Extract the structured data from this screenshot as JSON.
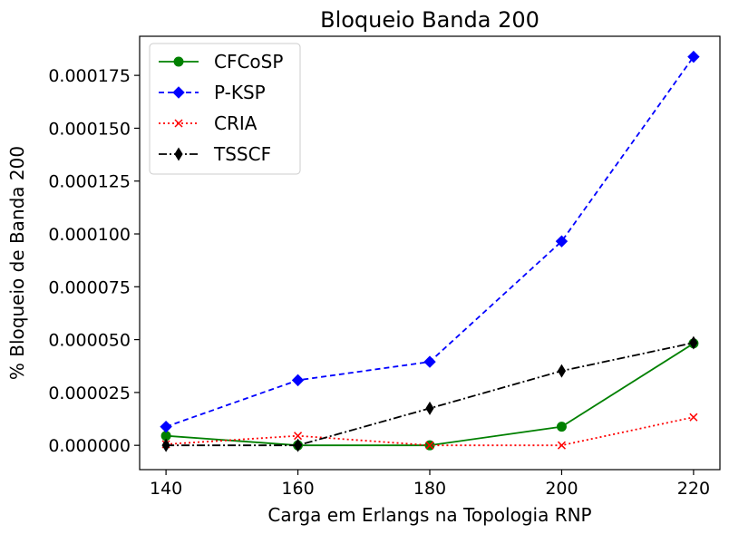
{
  "chart_data": {
    "type": "line",
    "title": "Bloqueio Banda 200",
    "xlabel": "Carga em Erlangs na Topologia RNP",
    "ylabel": "% Bloqueio de Banda 200",
    "x": [
      140,
      160,
      180,
      200,
      220
    ],
    "x_ticks": [
      "140",
      "160",
      "180",
      "200",
      "220"
    ],
    "y_ticks": [
      "0.000000",
      "0.000025",
      "0.000050",
      "0.000075",
      "0.000100",
      "0.000125",
      "0.000150",
      "0.000175"
    ],
    "xlim": [
      136,
      224
    ],
    "ylim": [
      -1.15e-05,
      0.0001935
    ],
    "grid": false,
    "legend_position": "upper-left",
    "series": [
      {
        "name": "CFCoSP",
        "color": "#008000",
        "linestyle": "solid",
        "marker": "circle",
        "values": [
          4.5e-06,
          0.0,
          0.0,
          8.8e-06,
          4.82e-05
        ]
      },
      {
        "name": "P-KSP",
        "color": "#0000ff",
        "linestyle": "dashed",
        "marker": "diamond",
        "values": [
          8.8e-06,
          3.08e-05,
          3.95e-05,
          9.65e-05,
          0.0001838
        ]
      },
      {
        "name": "CRIA",
        "color": "#ff0000",
        "linestyle": "dotted",
        "marker": "x",
        "values": [
          5e-07,
          4.5e-06,
          0.0,
          0.0,
          1.33e-05
        ]
      },
      {
        "name": "TSSCF",
        "color": "#000000",
        "linestyle": "dashdot",
        "marker": "thin-diamond",
        "values": [
          0.0,
          0.0,
          1.75e-05,
          3.52e-05,
          4.85e-05
        ]
      }
    ]
  }
}
